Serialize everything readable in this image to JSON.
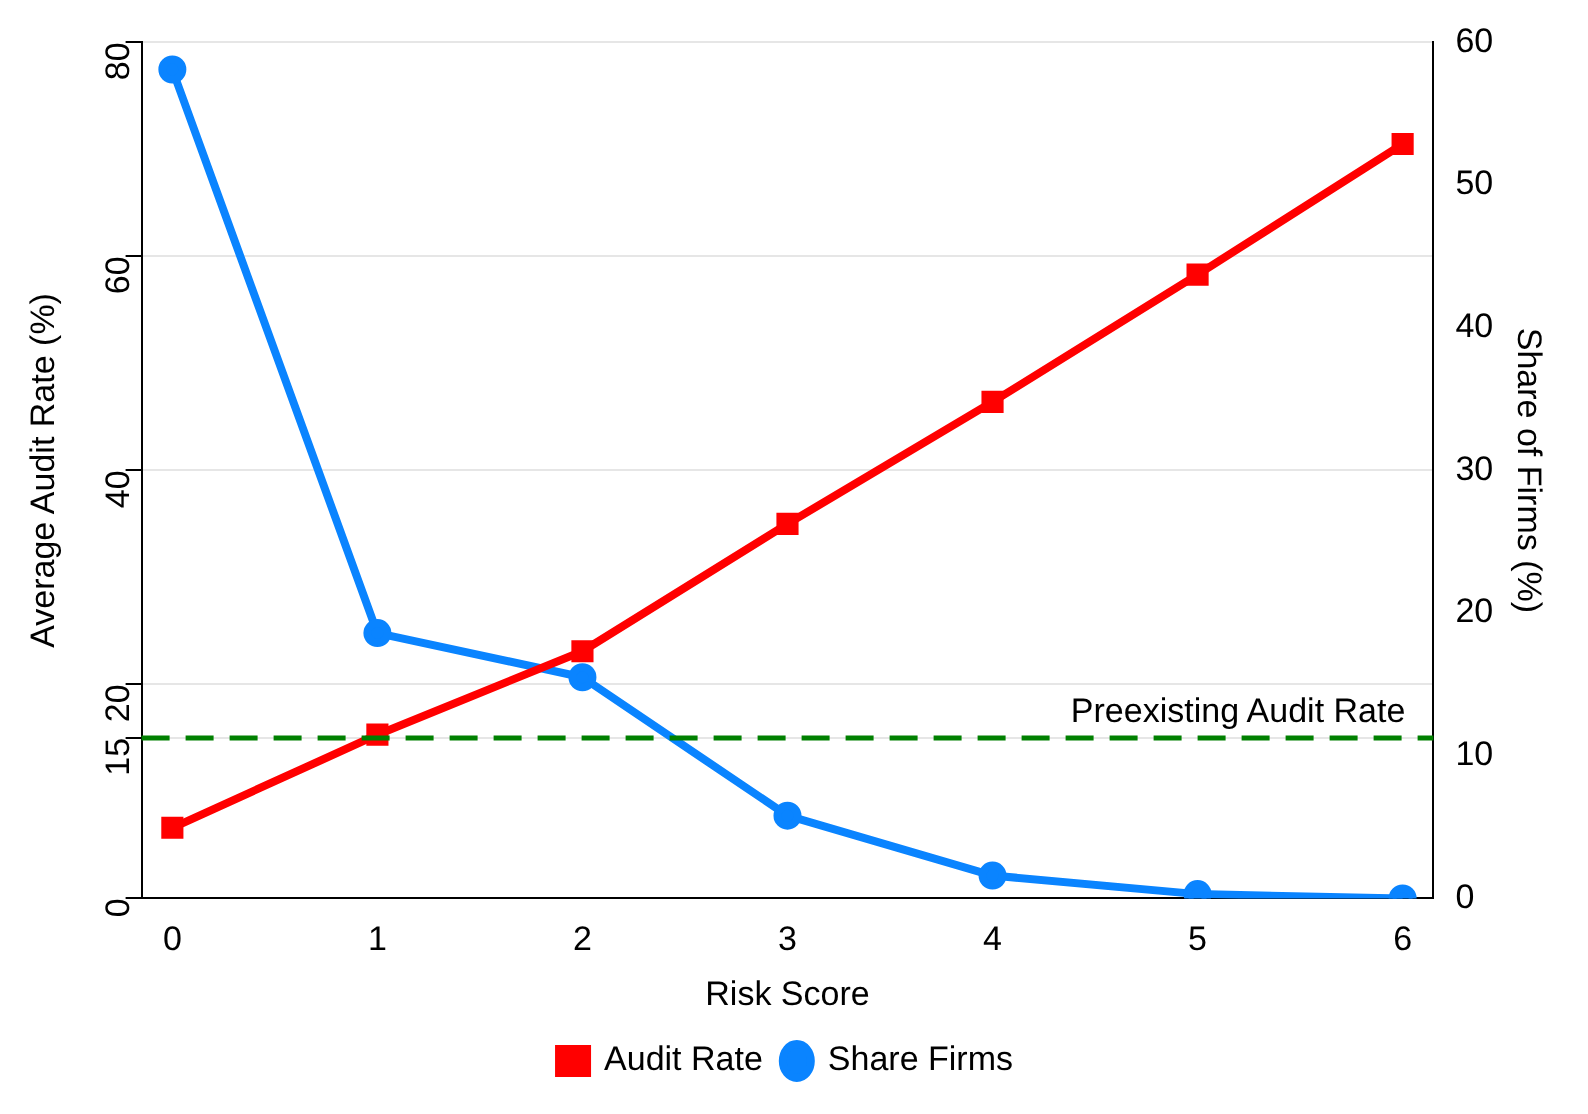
{
  "chart_data": {
    "type": "line",
    "xlabel": "Risk Score",
    "ylabel": "Average Audit Rate (%)",
    "y2label": "Share of Firms (%)",
    "x": [
      0,
      1,
      2,
      3,
      4,
      5,
      6
    ],
    "xlim": [
      -0.15,
      6.15
    ],
    "xticks": [
      0,
      1,
      2,
      3,
      4,
      5,
      6
    ],
    "ylim": [
      0,
      80
    ],
    "yticks": [
      0,
      15,
      20,
      40,
      60,
      80
    ],
    "y2lim": [
      0,
      60
    ],
    "y2ticks": [
      0,
      10,
      20,
      30,
      40,
      50,
      60
    ],
    "series": [
      {
        "name": "Audit Rate",
        "color": "#ff0000",
        "marker": "square",
        "values": [
          6.6,
          15.3,
          23.1,
          35,
          46.4,
          58.3,
          70.5
        ]
      },
      {
        "name": "Share Firms",
        "color": "#0a84ff",
        "marker": "circle",
        "axis": "y2",
        "values": [
          58.1,
          18.6,
          15.5,
          5.8,
          1.6,
          0.3,
          0
        ]
      }
    ],
    "ref_lines": [
      {
        "axis": "y",
        "value": 15,
        "label": "Preexisting Audit Rate",
        "color": "#008000",
        "line_style": "dashed"
      }
    ],
    "grid": "y",
    "legend": "bottom"
  }
}
